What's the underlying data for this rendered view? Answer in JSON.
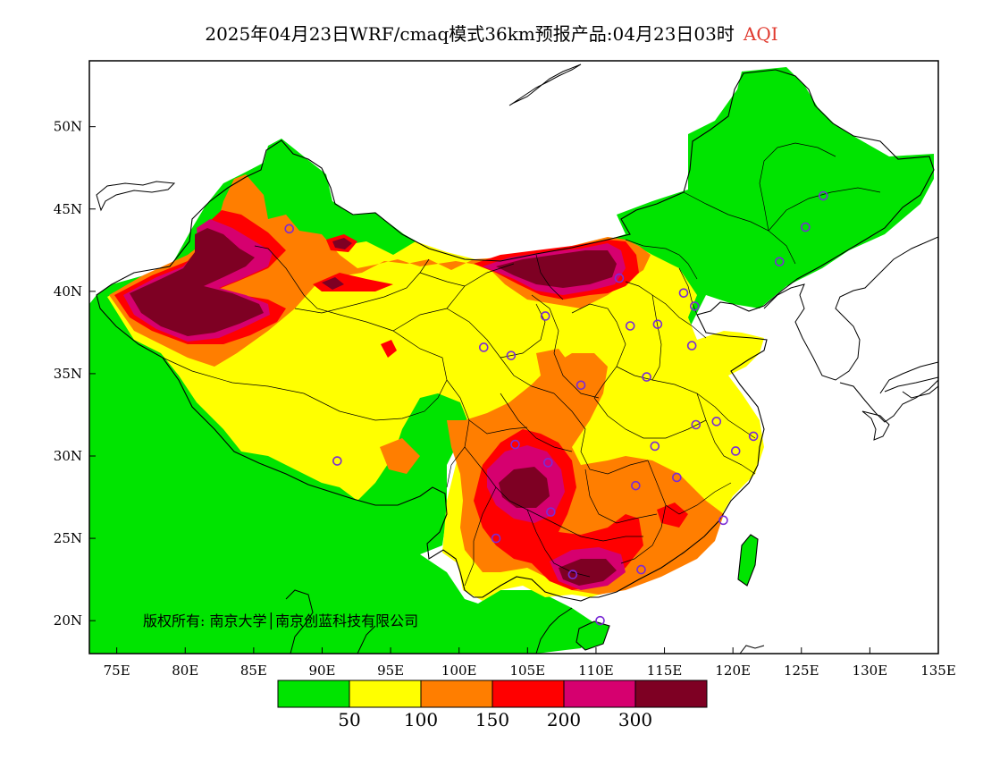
{
  "title": {
    "product": "2025年04月23日WRF/cmaq模式36km预报产品:04月23日03时",
    "variable": "AQI",
    "variable_color": "#e0392e"
  },
  "copyright": "版权所有: 南京大学│南京创蓝科技有限公司",
  "axes": {
    "x_ticks": [
      "75E",
      "80E",
      "85E",
      "90E",
      "95E",
      "100E",
      "105E",
      "110E",
      "115E",
      "120E",
      "125E",
      "130E",
      "135E"
    ],
    "y_ticks": [
      "50N",
      "45N",
      "40N",
      "35N",
      "30N",
      "25N",
      "20N"
    ],
    "lon_range": [
      73,
      135
    ],
    "lat_range": [
      18,
      54
    ]
  },
  "legend": {
    "colors": [
      "#00e400",
      "#ffff00",
      "#ff7e00",
      "#ff0000",
      "#d6006f",
      "#7e0023"
    ],
    "labels": [
      "50",
      "100",
      "150",
      "200",
      "300"
    ]
  },
  "stations": [
    {
      "lon": 87.6,
      "lat": 43.8
    },
    {
      "lon": 91.1,
      "lat": 29.7
    },
    {
      "lon": 101.8,
      "lat": 36.6
    },
    {
      "lon": 103.8,
      "lat": 36.1
    },
    {
      "lon": 106.3,
      "lat": 38.5
    },
    {
      "lon": 111.7,
      "lat": 40.8
    },
    {
      "lon": 116.4,
      "lat": 39.9
    },
    {
      "lon": 117.2,
      "lat": 39.1
    },
    {
      "lon": 114.5,
      "lat": 38.0
    },
    {
      "lon": 112.5,
      "lat": 37.9
    },
    {
      "lon": 117.0,
      "lat": 36.7
    },
    {
      "lon": 108.9,
      "lat": 34.3
    },
    {
      "lon": 113.7,
      "lat": 34.8
    },
    {
      "lon": 117.3,
      "lat": 31.9
    },
    {
      "lon": 118.8,
      "lat": 32.1
    },
    {
      "lon": 121.5,
      "lat": 31.2
    },
    {
      "lon": 120.2,
      "lat": 30.3
    },
    {
      "lon": 114.3,
      "lat": 30.6
    },
    {
      "lon": 104.1,
      "lat": 30.7
    },
    {
      "lon": 106.5,
      "lat": 29.6
    },
    {
      "lon": 106.7,
      "lat": 26.6
    },
    {
      "lon": 102.7,
      "lat": 25.0
    },
    {
      "lon": 108.3,
      "lat": 22.8
    },
    {
      "lon": 113.3,
      "lat": 23.1
    },
    {
      "lon": 110.3,
      "lat": 20.0
    },
    {
      "lon": 112.9,
      "lat": 28.2
    },
    {
      "lon": 115.9,
      "lat": 28.7
    },
    {
      "lon": 119.3,
      "lat": 26.1
    },
    {
      "lon": 123.4,
      "lat": 41.8
    },
    {
      "lon": 125.3,
      "lat": 43.9
    },
    {
      "lon": 126.6,
      "lat": 45.8
    }
  ]
}
